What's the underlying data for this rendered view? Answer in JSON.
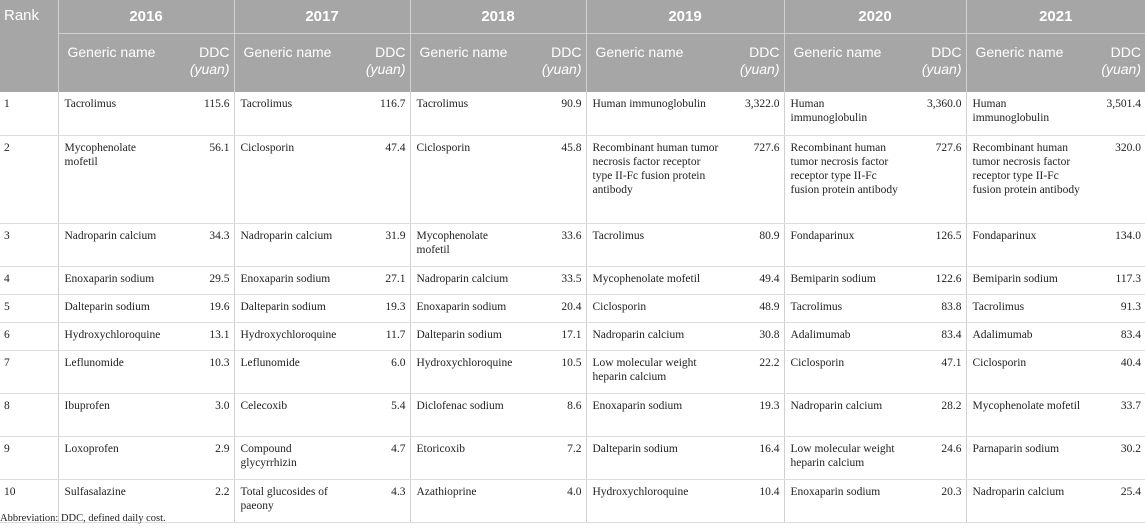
{
  "header": {
    "rank_label": "Rank",
    "years": [
      "2016",
      "2017",
      "2018",
      "2019",
      "2020",
      "2021"
    ],
    "generic_name_label": "Generic name",
    "ddc_label": "DDC",
    "ddc_unit": "(yuan)"
  },
  "rows": [
    {
      "rank": "1",
      "cells": [
        [
          "Tacrolimus",
          "115.6"
        ],
        [
          "Tacrolimus",
          "116.7"
        ],
        [
          "Tacrolimus",
          "90.9"
        ],
        [
          "Human immunoglobulin",
          "3,322.0"
        ],
        [
          "Human immunoglobulin",
          "3,360.0"
        ],
        [
          "Human immunoglobulin",
          "3,501.4"
        ]
      ]
    },
    {
      "rank": "2",
      "cells": [
        [
          "Mycophenolate mofetil",
          "56.1"
        ],
        [
          "Ciclosporin",
          "47.4"
        ],
        [
          "Ciclosporin",
          "45.8"
        ],
        [
          "Recombinant human tumor necrosis factor receptor type II-Fc fusion protein antibody",
          "727.6"
        ],
        [
          "Recombinant human tumor necrosis factor receptor type II-Fc fusion protein antibody",
          "727.6"
        ],
        [
          "Recombinant human tumor necrosis factor receptor type II-Fc fusion protein antibody",
          "320.0"
        ]
      ]
    },
    {
      "rank": "3",
      "cells": [
        [
          "Nadroparin calcium",
          "34.3"
        ],
        [
          "Nadroparin calcium",
          "31.9"
        ],
        [
          "Mycophenolate mofetil",
          "33.6"
        ],
        [
          "Tacrolimus",
          "80.9"
        ],
        [
          "Fondaparinux",
          "126.5"
        ],
        [
          "Fondaparinux",
          "134.0"
        ]
      ]
    },
    {
      "rank": "4",
      "cells": [
        [
          "Enoxaparin sodium",
          "29.5"
        ],
        [
          "Enoxaparin sodium",
          "27.1"
        ],
        [
          "Nadroparin calcium",
          "33.5"
        ],
        [
          "Mycophenolate mofetil",
          "49.4"
        ],
        [
          "Bemiparin sodium",
          "122.6"
        ],
        [
          "Bemiparin sodium",
          "117.3"
        ]
      ]
    },
    {
      "rank": "5",
      "cells": [
        [
          "Dalteparin sodium",
          "19.6"
        ],
        [
          "Dalteparin sodium",
          "19.3"
        ],
        [
          "Enoxaparin sodium",
          "20.4"
        ],
        [
          "Ciclosporin",
          "48.9"
        ],
        [
          "Tacrolimus",
          "83.8"
        ],
        [
          "Tacrolimus",
          "91.3"
        ]
      ]
    },
    {
      "rank": "6",
      "cells": [
        [
          "Hydroxychloroquine",
          "13.1"
        ],
        [
          "Hydroxychloroquine",
          "11.7"
        ],
        [
          "Dalteparin sodium",
          "17.1"
        ],
        [
          "Nadroparin calcium",
          "30.8"
        ],
        [
          "Adalimumab",
          "83.4"
        ],
        [
          "Adalimumab",
          "83.4"
        ]
      ]
    },
    {
      "rank": "7",
      "cells": [
        [
          "Leflunomide",
          "10.3"
        ],
        [
          "Leflunomide",
          "6.0"
        ],
        [
          "Hydroxychloroquine",
          "10.5"
        ],
        [
          "Low molecular weight heparin calcium",
          "22.2"
        ],
        [
          "Ciclosporin",
          "47.1"
        ],
        [
          "Ciclosporin",
          "40.4"
        ]
      ]
    },
    {
      "rank": "8",
      "cells": [
        [
          "Ibuprofen",
          "3.0"
        ],
        [
          "Celecoxib",
          "5.4"
        ],
        [
          "Diclofenac sodium",
          "8.6"
        ],
        [
          "Enoxaparin sodium",
          "19.3"
        ],
        [
          "Nadroparin calcium",
          "28.2"
        ],
        [
          "Mycophenolate mofetil",
          "33.7"
        ]
      ]
    },
    {
      "rank": "9",
      "cells": [
        [
          "Loxoprofen",
          "2.9"
        ],
        [
          "Compound glycyrrhizin",
          "4.7"
        ],
        [
          "Etoricoxib",
          "7.2"
        ],
        [
          "Dalteparin sodium",
          "16.4"
        ],
        [
          "Low molecular weight heparin calcium",
          "24.6"
        ],
        [
          "Parnaparin sodium",
          "30.2"
        ]
      ]
    },
    {
      "rank": "10",
      "cells": [
        [
          "Sulfasalazine",
          "2.2"
        ],
        [
          "Total glucosides of paeony",
          "4.3"
        ],
        [
          "Azathioprine",
          "4.0"
        ],
        [
          "Hydroxychloroquine",
          "10.4"
        ],
        [
          "Enoxaparin sodium",
          "20.3"
        ],
        [
          "Nadroparin calcium",
          "25.4"
        ]
      ]
    }
  ],
  "footnote": "Abbreviation: DDC, defined daily cost."
}
